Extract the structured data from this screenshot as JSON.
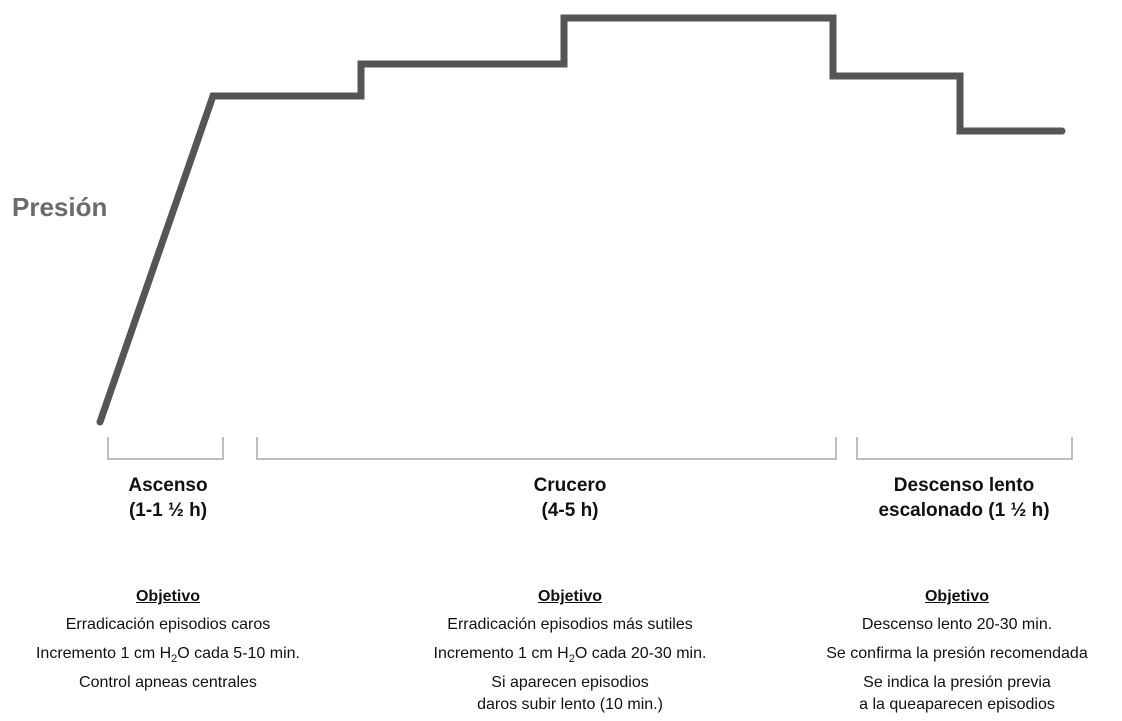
{
  "y_label": "Presión",
  "colors": {
    "line": "#555555",
    "bracket": "#a8a8a8",
    "label": "#6b6b6b"
  },
  "profile": {
    "description_levels": [
      "baseline",
      "ascent-top",
      "step-1",
      "peak",
      "descent-1",
      "final"
    ]
  },
  "phases": [
    {
      "title_line1": "Ascenso",
      "title_line2": "(1-1 ½ h)",
      "objective_heading": "Objetivo",
      "items": [
        {
          "pre": "Erradicación episodios caros"
        },
        {
          "pre": "Incremento 1 cm H",
          "sub": "2",
          "post": "O cada 5-10 min."
        },
        {
          "pre": "Control apneas centrales"
        }
      ]
    },
    {
      "title_line1": "Crucero",
      "title_line2": "(4-5 h)",
      "objective_heading": "Objetivo",
      "items": [
        {
          "pre": "Erradicación episodios más sutiles"
        },
        {
          "pre": "Incremento 1 cm H",
          "sub": "2",
          "post": "O cada 20-30 min."
        },
        {
          "pre": "Si aparecen episodios"
        },
        {
          "pre": "daros subir lento (10 min.)"
        }
      ]
    },
    {
      "title_line1": "Descenso lento",
      "title_line2": "escalonado (1 ½ h)",
      "objective_heading": "Objetivo",
      "items": [
        {
          "pre": "Descenso lento 20-30 min."
        },
        {
          "pre": "Se confirma la presión recomendada"
        },
        {
          "pre": "Se indica la presión previa"
        },
        {
          "pre": "a la queaparecen episodios"
        }
      ]
    }
  ]
}
